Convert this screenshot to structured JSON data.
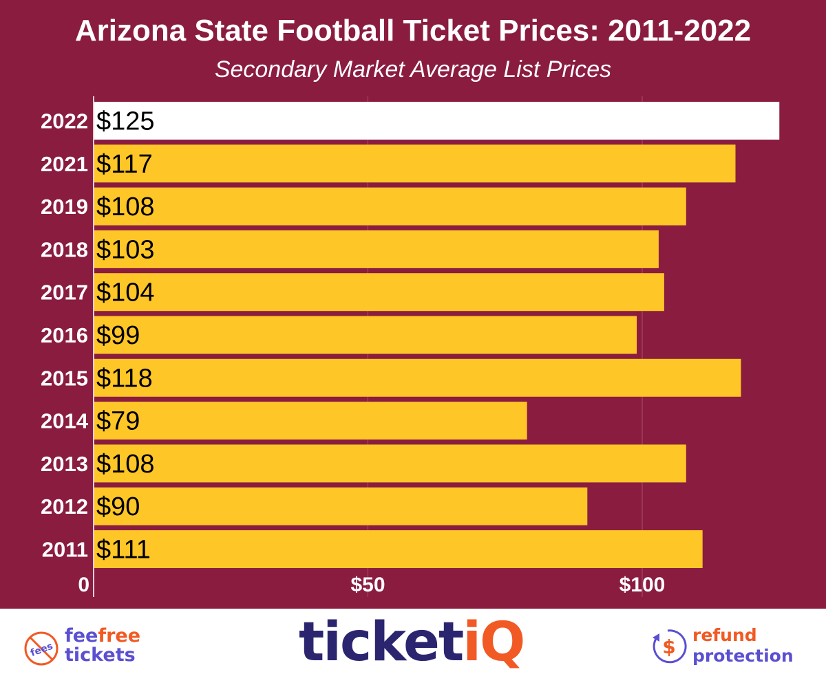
{
  "chart_data": {
    "type": "bar",
    "orientation": "horizontal",
    "title": "Arizona State Football Ticket Prices: 2011-2022",
    "subtitle": "Secondary Market Average List Prices",
    "categories": [
      "2022",
      "2021",
      "2019",
      "2018",
      "2017",
      "2016",
      "2015",
      "2014",
      "2013",
      "2012",
      "2011"
    ],
    "values": [
      125,
      117,
      108,
      103,
      104,
      99,
      118,
      79,
      108,
      90,
      111
    ],
    "data_labels": [
      "$125",
      "$117",
      "$108",
      "$103",
      "$104",
      "$99",
      "$118",
      "$79",
      "$108",
      "$90",
      "$111"
    ],
    "xlim": [
      0,
      132
    ],
    "x_ticks": [
      0,
      50,
      100
    ],
    "x_tick_labels": [
      "0",
      "$50",
      "$100"
    ],
    "grid": true,
    "colors": {
      "background": "#8a1c40",
      "bar": "#ffc627",
      "highlight_bar": "#ffffff"
    }
  },
  "footer": {
    "left_logo": {
      "line1a": "fee",
      "line1b": "free",
      "line2": "tickets",
      "badge": "fees"
    },
    "center_logo": {
      "text_a": "ticket",
      "text_b": "iQ"
    },
    "right_logo": {
      "line1": "refund",
      "line2": "protection",
      "symbol": "$"
    },
    "colors": {
      "navy": "#2b2570",
      "orange": "#f15a24",
      "purple": "#5b4fd1"
    }
  }
}
